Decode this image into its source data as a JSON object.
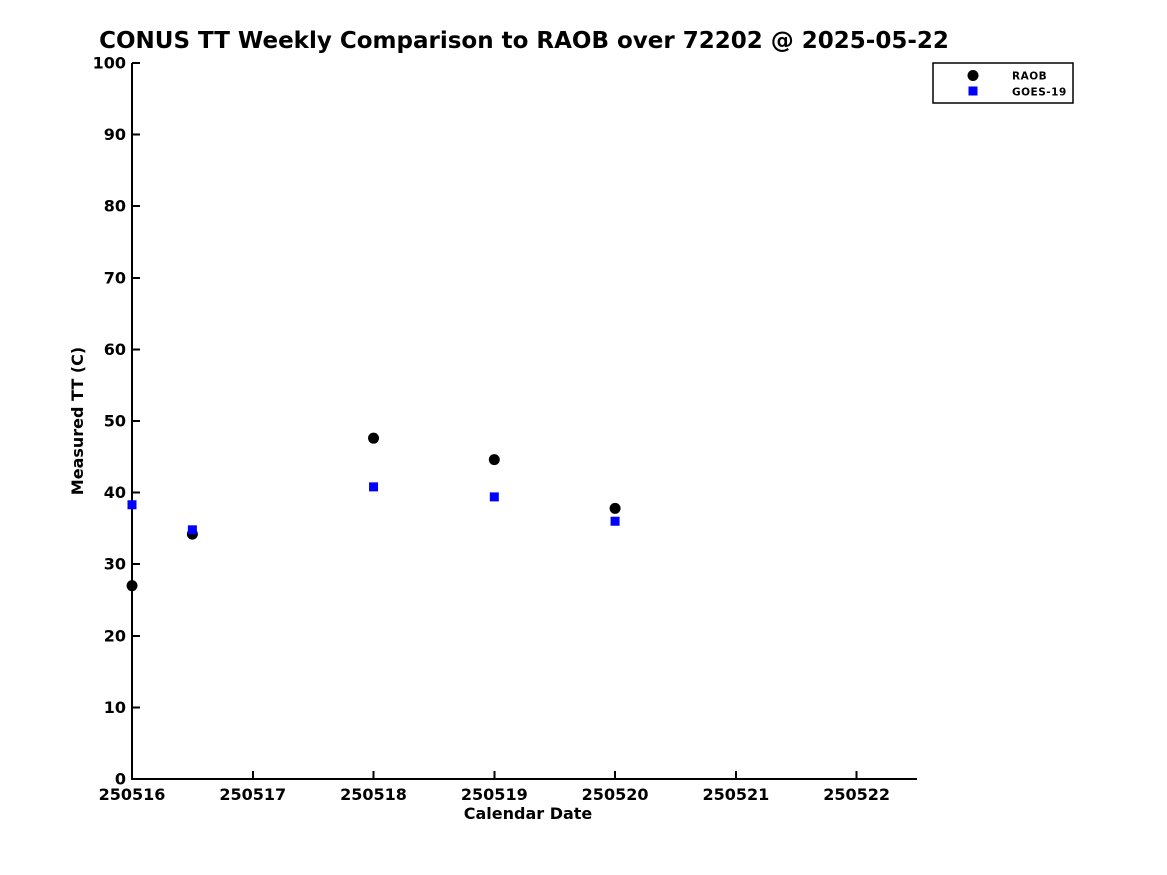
{
  "chart_data": {
    "type": "scatter",
    "title": "CONUS TT Weekly Comparison to RAOB over 72202 @ 2025-05-22",
    "xlabel": "Calendar Date",
    "ylabel": "Measured TT (C)",
    "xlim": [
      250516,
      250522.5
    ],
    "ylim": [
      0,
      100
    ],
    "xticks": [
      250516,
      250517,
      250518,
      250519,
      250520,
      250521,
      250522
    ],
    "xtick_labels": [
      "250516",
      "250517",
      "250518",
      "250519",
      "250520",
      "250521",
      "250522"
    ],
    "yticks": [
      0,
      10,
      20,
      30,
      40,
      50,
      60,
      70,
      80,
      90,
      100
    ],
    "ytick_labels": [
      "0",
      "10",
      "20",
      "30",
      "40",
      "50",
      "60",
      "70",
      "80",
      "90",
      "100"
    ],
    "grid": false,
    "legend_position": "upper right",
    "axis_color": "#000000",
    "background_color": "#ffffff",
    "series": [
      {
        "name": "RAOB",
        "marker": "circle",
        "color": "#000000",
        "points": [
          [
            250516.0,
            27.0
          ],
          [
            250516.5,
            34.2
          ],
          [
            250518.0,
            47.6
          ],
          [
            250519.0,
            44.6
          ],
          [
            250520.0,
            37.8
          ]
        ]
      },
      {
        "name": "GOES-19",
        "marker": "square",
        "color": "#0000ff",
        "points": [
          [
            250516.0,
            38.3
          ],
          [
            250516.5,
            34.8
          ],
          [
            250518.0,
            40.8
          ],
          [
            250519.0,
            39.4
          ],
          [
            250520.0,
            36.0
          ]
        ]
      }
    ]
  }
}
